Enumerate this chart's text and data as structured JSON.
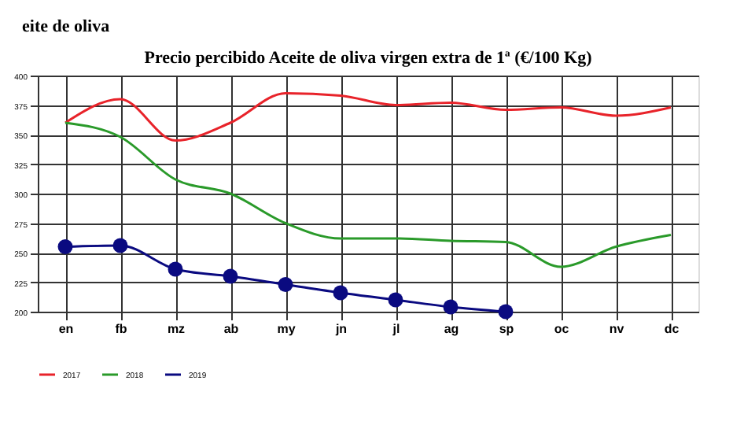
{
  "chart_data": {
    "type": "line",
    "title": "Precio percibido Aceite de oliva virgen extra de 1ª (€/100 Kg)",
    "annotations": [
      "eite de oliva"
    ],
    "categories": [
      "en",
      "fb",
      "mz",
      "ab",
      "my",
      "jn",
      "jl",
      "ag",
      "sp",
      "oc",
      "nv",
      "dc"
    ],
    "series": [
      {
        "name": "2017",
        "color": "#e8232a",
        "marker": "none",
        "values": [
          360,
          380,
          345,
          360,
          385,
          383,
          375,
          377,
          371,
          373,
          366,
          373
        ]
      },
      {
        "name": "2018",
        "color": "#2a9a2a",
        "marker": "none",
        "values": [
          360,
          348,
          312,
          300,
          275,
          262,
          262,
          260,
          259,
          238,
          255,
          265
        ]
      },
      {
        "name": "2019",
        "color": "#0a0a80",
        "marker": "circle",
        "values": [
          255,
          256,
          236,
          230,
          223,
          216,
          210,
          204,
          200,
          null,
          null,
          null
        ]
      }
    ],
    "ylim": [
      200,
      400
    ],
    "yticks": [
      200,
      225,
      250,
      275,
      300,
      325,
      350,
      375,
      400
    ],
    "grid": true,
    "legend": "bottom",
    "line_style": "solid"
  }
}
